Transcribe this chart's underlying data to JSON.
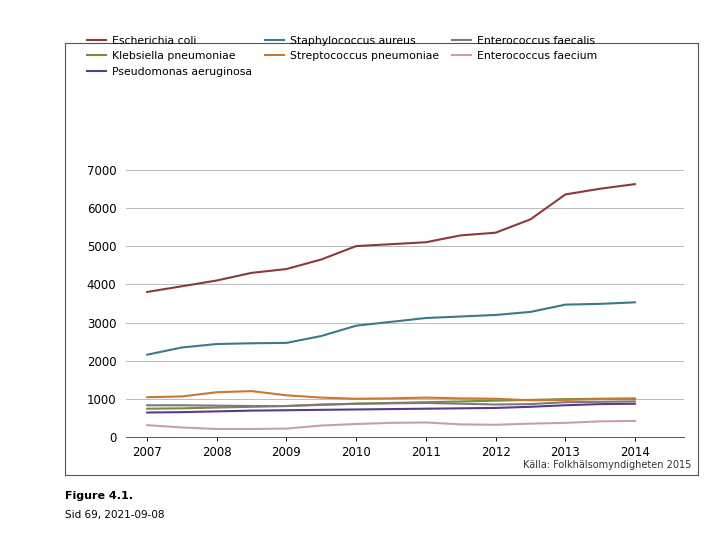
{
  "years": [
    2007,
    2007.5,
    2008,
    2008.5,
    2009,
    2009.5,
    2010,
    2010.5,
    2011,
    2011.5,
    2012,
    2012.5,
    2013,
    2013.5,
    2014
  ],
  "series": {
    "Escherichia coli": {
      "color": "#8B3A3A",
      "values": [
        3800,
        3950,
        4100,
        4300,
        4400,
        4650,
        5000,
        5050,
        5100,
        5280,
        5350,
        5700,
        6350,
        6500,
        6620
      ]
    },
    "Klebsiella pneumoniae": {
      "color": "#7B8B3A",
      "values": [
        750,
        760,
        780,
        800,
        820,
        850,
        880,
        900,
        920,
        940,
        960,
        980,
        1000,
        1010,
        1020
      ]
    },
    "Pseudomonas aeruginosa": {
      "color": "#5A3A8B",
      "values": [
        650,
        660,
        680,
        700,
        710,
        720,
        730,
        740,
        750,
        760,
        770,
        800,
        840,
        870,
        880
      ]
    },
    "Staphylococcus aureus": {
      "color": "#3A7A8B",
      "values": [
        2160,
        2350,
        2440,
        2460,
        2470,
        2650,
        2920,
        3020,
        3120,
        3160,
        3200,
        3280,
        3470,
        3490,
        3530
      ]
    },
    "Streptococcus pneumoniae": {
      "color": "#C87830",
      "values": [
        1050,
        1070,
        1180,
        1210,
        1100,
        1040,
        1010,
        1020,
        1040,
        1020,
        1010,
        970,
        980,
        1000,
        1000
      ]
    },
    "Enterococcus faecalis": {
      "color": "#7B7B7B",
      "values": [
        840,
        840,
        830,
        820,
        820,
        860,
        880,
        890,
        900,
        880,
        860,
        870,
        920,
        930,
        940
      ]
    },
    "Enterococcus faecium": {
      "color": "#C8A0A0",
      "values": [
        320,
        260,
        220,
        220,
        230,
        310,
        350,
        380,
        390,
        340,
        330,
        360,
        380,
        420,
        430
      ]
    }
  },
  "xlim": [
    2006.7,
    2014.7
  ],
  "ylim": [
    0,
    7000
  ],
  "yticks": [
    0,
    1000,
    2000,
    3000,
    4000,
    5000,
    6000,
    7000
  ],
  "xticks": [
    2007,
    2008,
    2009,
    2010,
    2011,
    2012,
    2013,
    2014
  ],
  "source_text": "Källa: Folkhälsomyndigheten 2015",
  "figure_text": "Figure 4.1.",
  "slide_text": "Sid 69, 2021-09-08",
  "background_color": "#FFFFFF",
  "chart_bg": "#FFFFFF",
  "grid_color": "#BBBBBB",
  "legend_order": [
    "Escherichia coli",
    "Klebsiella pneumoniae",
    "Pseudomonas aeruginosa",
    "Staphylococcus aureus",
    "Streptococcus pneumoniae",
    "Enterococcus faecalis",
    "Enterococcus faecium"
  ]
}
